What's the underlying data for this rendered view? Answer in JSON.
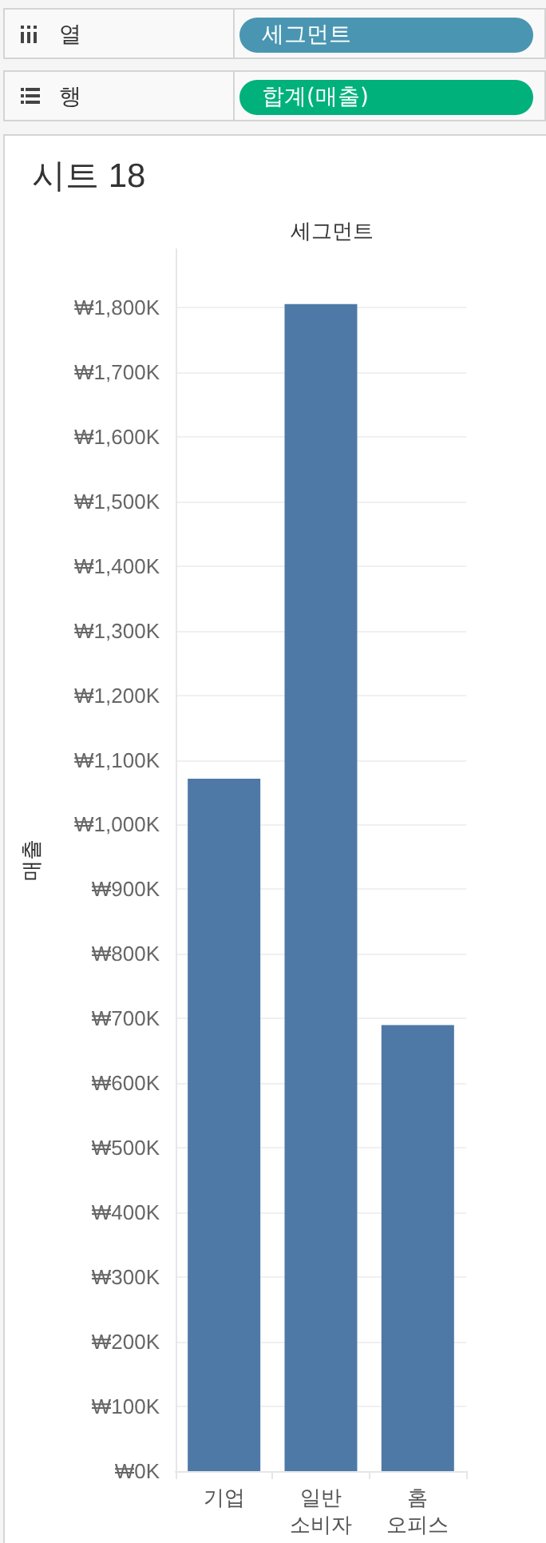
{
  "chart_data": {
    "type": "bar",
    "title": "시트 18",
    "xlabel": "세그먼트",
    "ylabel": "매출",
    "annotations": [
      "열",
      "세그먼트",
      "행",
      "합계(매출)"
    ],
    "categories": [
      "기업",
      "일반 소비자",
      "홈 오피스"
    ],
    "values": [
      1071,
      1805,
      690
    ],
    "color": "#4e79a7",
    "ylim": [
      0,
      1890
    ],
    "yticks": [
      {
        "value": 0,
        "label": "₩0K"
      },
      {
        "value": 100,
        "label": "₩100K"
      },
      {
        "value": 200,
        "label": "₩200K"
      },
      {
        "value": 300,
        "label": "₩300K"
      },
      {
        "value": 400,
        "label": "₩400K"
      },
      {
        "value": 500,
        "label": "₩500K"
      },
      {
        "value": 600,
        "label": "₩600K"
      },
      {
        "value": 700,
        "label": "₩700K"
      },
      {
        "value": 800,
        "label": "₩800K"
      },
      {
        "value": 900,
        "label": "₩900K"
      },
      {
        "value": 1000,
        "label": "₩1,000K"
      },
      {
        "value": 1100,
        "label": "₩1,100K"
      },
      {
        "value": 1200,
        "label": "₩1,200K"
      },
      {
        "value": 1300,
        "label": "₩1,300K"
      },
      {
        "value": 1400,
        "label": "₩1,400K"
      },
      {
        "value": 1500,
        "label": "₩1,500K"
      },
      {
        "value": 1600,
        "label": "₩1,600K"
      },
      {
        "value": 1700,
        "label": "₩1,700K"
      },
      {
        "value": 1800,
        "label": "₩1,800K"
      }
    ],
    "grid": "y"
  }
}
